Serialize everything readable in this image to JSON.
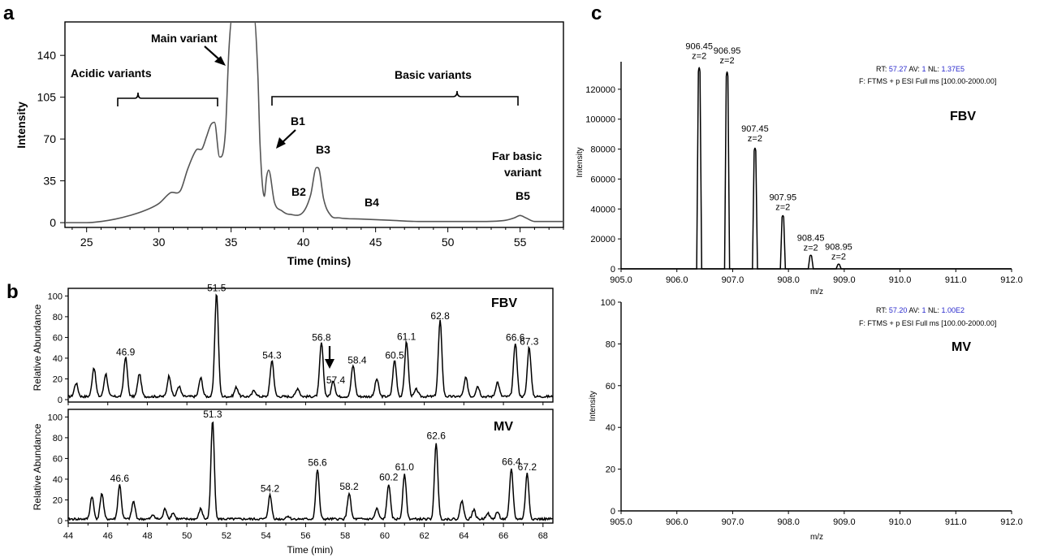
{
  "panels": {
    "a": {
      "letter": "a",
      "xlabel": "Time (mins)",
      "ylabel": "Intensity",
      "xticks": [
        "25",
        "30",
        "35",
        "40",
        "45",
        "50",
        "55"
      ],
      "yticks": [
        "0",
        "35",
        "70",
        "105",
        "140"
      ],
      "annotations": {
        "main_variant": "Main variant",
        "acidic_variants": "Acidic variants",
        "basic_variants": "Basic variants",
        "b1": "B1",
        "b2": "B2",
        "b3": "B3",
        "b4": "B4",
        "b5": "B5",
        "far_basic_line1": "Far basic",
        "far_basic_line2": "variant"
      }
    },
    "b": {
      "letter": "b",
      "xlabel": "Time (min)",
      "ylabel": "Relative Abundance",
      "xticks": [
        "44",
        "46",
        "48",
        "50",
        "52",
        "54",
        "56",
        "58",
        "60",
        "62",
        "64",
        "66",
        "68"
      ],
      "yticks": [
        "0",
        "20",
        "40",
        "60",
        "80",
        "100"
      ],
      "top": {
        "sample": "FBV",
        "peaks": [
          "46.9",
          "51.5",
          "54.3",
          "56.8",
          "57.4",
          "58.4",
          "60.5",
          "61.1",
          "62.8",
          "66.6",
          "67.3"
        ]
      },
      "bottom": {
        "sample": "MV",
        "peaks": [
          "46.6",
          "51.3",
          "54.2",
          "56.6",
          "58.2",
          "60.2",
          "61.0",
          "62.6",
          "66.4",
          "67.2"
        ]
      }
    },
    "c": {
      "letter": "c",
      "xlabel": "m/z",
      "ylabel": "Intensity",
      "xticks": [
        "905.0",
        "906.0",
        "907.0",
        "908.0",
        "909.0",
        "910.0",
        "911.0",
        "912.0"
      ],
      "top": {
        "sample": "FBV",
        "yticks": [
          "0",
          "20000",
          "40000",
          "60000",
          "80000",
          "100000",
          "120000"
        ],
        "rt_label": "RT:",
        "rt_value": "57.27",
        "av_label": "AV:",
        "av_value": "1",
        "nl_label": "NL:",
        "nl_value": "1.37E5",
        "filter": "F: FTMS + p ESI Full ms [100.00-2000.00]",
        "peaks": [
          {
            "mz": "906.45",
            "z": "z=2"
          },
          {
            "mz": "906.95",
            "z": "z=2"
          },
          {
            "mz": "907.45",
            "z": "z=2"
          },
          {
            "mz": "907.95",
            "z": "z=2"
          },
          {
            "mz": "908.45",
            "z": "z=2"
          },
          {
            "mz": "908.95",
            "z": "z=2"
          }
        ]
      },
      "bottom": {
        "sample": "MV",
        "yticks": [
          "0",
          "20",
          "40",
          "60",
          "80",
          "100"
        ],
        "rt_label": "RT:",
        "rt_value": "57.20",
        "av_label": "AV:",
        "av_value": "1",
        "nl_label": "NL:",
        "nl_value": "1.00E2",
        "filter": "F: FTMS + p ESI Full ms [100.00-2000.00]"
      }
    }
  },
  "colors": {
    "info_blue": "#2a2acc",
    "filter_red": "#e0201a",
    "trace_a": "#555555",
    "trace": "#000000"
  },
  "chart_data": [
    {
      "panel": "a",
      "type": "line",
      "xlabel": "Time (mins)",
      "ylabel": "Intensity",
      "xlim": [
        23.5,
        58
      ],
      "ylim": [
        -4,
        168
      ],
      "x": [
        23.5,
        25,
        26,
        27,
        28,
        29,
        30,
        30.8,
        31.5,
        32,
        32.6,
        33,
        33.3,
        33.6,
        33.85,
        34.2,
        34.6,
        34.85,
        35.05,
        35.4,
        36,
        36.6,
        36.85,
        37.0,
        37.3,
        37.45,
        37.6,
        38,
        38.5,
        39,
        40,
        40.5,
        40.9,
        41.1,
        41.4,
        41.9,
        42.5,
        44,
        46,
        48,
        50,
        52,
        54,
        54.6,
        55.0,
        55.4,
        56,
        57,
        58
      ],
      "y": [
        0,
        0,
        1,
        3,
        6,
        10,
        16,
        25,
        27,
        45,
        61,
        62,
        72,
        82,
        84,
        55,
        75,
        145,
        170,
        170,
        170,
        170,
        124,
        66,
        22,
        38,
        44,
        17,
        10,
        7,
        9,
        23,
        46,
        44,
        20,
        6,
        4,
        3,
        2,
        1,
        1,
        1,
        2,
        4,
        6,
        4,
        1,
        1,
        1
      ],
      "annotations": [
        "Main variant",
        "Acidic variants",
        "Basic variants",
        "B1",
        "B2",
        "B3",
        "B4",
        "B5",
        "Far basic variant"
      ]
    },
    {
      "panel": "b-top",
      "type": "line",
      "title": "FBV",
      "xlabel": "Time (min)",
      "ylabel": "Relative Abundance",
      "xlim": [
        44,
        68.5
      ],
      "ylim": [
        0,
        105
      ],
      "peaks": [
        {
          "x": 44.4,
          "y": 13
        },
        {
          "x": 45.3,
          "y": 28
        },
        {
          "x": 45.9,
          "y": 22
        },
        {
          "x": 46.9,
          "y": 38,
          "label": "46.9"
        },
        {
          "x": 47.6,
          "y": 22
        },
        {
          "x": 49.1,
          "y": 20
        },
        {
          "x": 49.6,
          "y": 10
        },
        {
          "x": 50.7,
          "y": 18
        },
        {
          "x": 51.5,
          "y": 100,
          "label": "51.5"
        },
        {
          "x": 52.5,
          "y": 9
        },
        {
          "x": 53.4,
          "y": 6
        },
        {
          "x": 54.3,
          "y": 35,
          "label": "54.3"
        },
        {
          "x": 55.6,
          "y": 8
        },
        {
          "x": 56.8,
          "y": 52,
          "label": "56.8"
        },
        {
          "x": 57.4,
          "y": 15,
          "label": "57.4"
        },
        {
          "x": 58.4,
          "y": 30,
          "label": "58.4"
        },
        {
          "x": 59.6,
          "y": 17
        },
        {
          "x": 60.5,
          "y": 35,
          "label": "60.5"
        },
        {
          "x": 61.1,
          "y": 53,
          "label": "61.1"
        },
        {
          "x": 61.6,
          "y": 7
        },
        {
          "x": 62.8,
          "y": 73,
          "label": "62.8"
        },
        {
          "x": 64.1,
          "y": 18
        },
        {
          "x": 64.7,
          "y": 10
        },
        {
          "x": 65.7,
          "y": 14
        },
        {
          "x": 66.6,
          "y": 52,
          "label": "66.6"
        },
        {
          "x": 67.3,
          "y": 48,
          "label": "67.3"
        }
      ],
      "annotations": [
        "arrow at 57.4"
      ]
    },
    {
      "panel": "b-bottom",
      "type": "line",
      "title": "MV",
      "xlabel": "Time (min)",
      "ylabel": "Relative Abundance",
      "xlim": [
        44,
        68.5
      ],
      "ylim": [
        0,
        105
      ],
      "peaks": [
        {
          "x": 45.2,
          "y": 22
        },
        {
          "x": 45.7,
          "y": 25
        },
        {
          "x": 46.6,
          "y": 33,
          "label": "46.6"
        },
        {
          "x": 47.3,
          "y": 17
        },
        {
          "x": 48.3,
          "y": 4
        },
        {
          "x": 48.9,
          "y": 10
        },
        {
          "x": 49.3,
          "y": 6
        },
        {
          "x": 50.7,
          "y": 10
        },
        {
          "x": 51.3,
          "y": 95,
          "label": "51.3"
        },
        {
          "x": 54.2,
          "y": 23,
          "label": "54.2"
        },
        {
          "x": 55.1,
          "y": 3
        },
        {
          "x": 56.6,
          "y": 48,
          "label": "56.6"
        },
        {
          "x": 58.2,
          "y": 25,
          "label": "58.2"
        },
        {
          "x": 59.6,
          "y": 10
        },
        {
          "x": 60.2,
          "y": 34,
          "label": "60.2"
        },
        {
          "x": 61.0,
          "y": 44,
          "label": "61.0"
        },
        {
          "x": 62.6,
          "y": 74,
          "label": "62.6"
        },
        {
          "x": 63.9,
          "y": 18
        },
        {
          "x": 64.5,
          "y": 9
        },
        {
          "x": 65.2,
          "y": 6
        },
        {
          "x": 65.7,
          "y": 7
        },
        {
          "x": 66.4,
          "y": 49,
          "label": "66.4"
        },
        {
          "x": 67.2,
          "y": 44,
          "label": "67.2"
        }
      ]
    },
    {
      "panel": "c-top",
      "type": "line",
      "title": "FBV",
      "xlabel": "m/z",
      "ylabel": "Intensity",
      "xlim": [
        905.0,
        912.0
      ],
      "ylim": [
        0,
        140000
      ],
      "peaks": [
        {
          "x": 906.45,
          "y": 137000,
          "label": "906.45"
        },
        {
          "x": 906.95,
          "y": 134000,
          "label": "906.95"
        },
        {
          "x": 907.45,
          "y": 82000,
          "label": "907.45"
        },
        {
          "x": 907.95,
          "y": 36000,
          "label": "907.95"
        },
        {
          "x": 908.45,
          "y": 9000,
          "label": "908.45"
        },
        {
          "x": 908.95,
          "y": 3000,
          "label": "908.95"
        }
      ]
    },
    {
      "panel": "c-bottom",
      "type": "line",
      "title": "MV",
      "xlabel": "m/z",
      "ylabel": "Intensity",
      "xlim": [
        905.0,
        912.0
      ],
      "ylim": [
        0,
        100
      ],
      "peaks": []
    }
  ]
}
